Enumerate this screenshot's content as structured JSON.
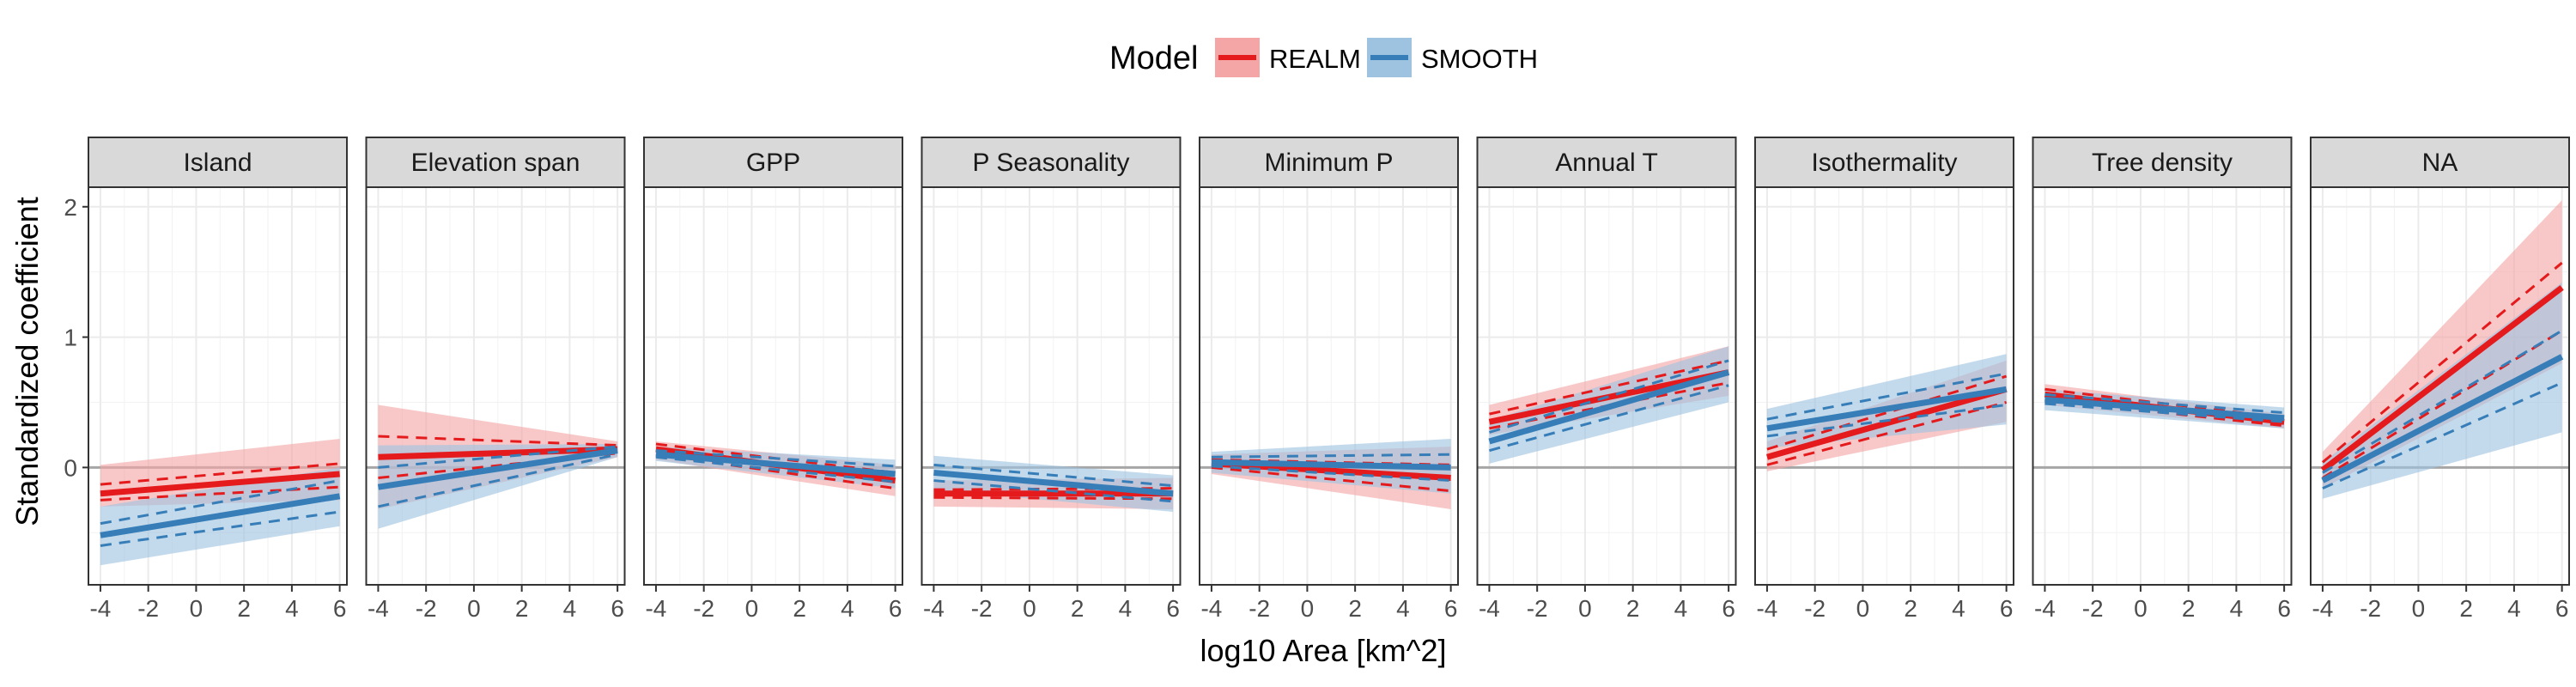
{
  "legend": {
    "title": "Model",
    "items": [
      {
        "label": "REALM",
        "color": "#E41A1C"
      },
      {
        "label": "SMOOTH",
        "color": "#377EB8"
      }
    ]
  },
  "axes": {
    "xlabel": "log10 Area [km^2]",
    "ylabel": "Standardized coefficient"
  },
  "chart_data": {
    "type": "line",
    "facet_by": "predictor",
    "x_range": [
      -4.5,
      6.3
    ],
    "y_range": [
      -0.9,
      2.15
    ],
    "x_ticks": [
      -4,
      -2,
      0,
      2,
      4,
      6
    ],
    "x_tick_labels": [
      "-4",
      "-2",
      "0",
      "2",
      "4",
      "6"
    ],
    "y_ticks": [
      0,
      1,
      2
    ],
    "y_tick_labels": [
      "0",
      "1",
      "2"
    ],
    "grid": true,
    "legend_position": "top",
    "reference_line_y": 0,
    "series_names": [
      "REALM",
      "SMOOTH"
    ],
    "series_colors": [
      "#E41A1C",
      "#377EB8"
    ],
    "band_colors": [
      "#F4A6A6",
      "#9EC3E0"
    ],
    "panels": [
      {
        "title": "Island",
        "series": [
          {
            "name": "REALM",
            "x": [
              -4,
              6
            ],
            "y": [
              -0.2,
              -0.05
            ],
            "lo": [
              -0.3,
              -0.25
            ],
            "hi": [
              0.02,
              0.22
            ],
            "dash_lo": [
              -0.25,
              -0.15
            ],
            "dash_hi": [
              -0.13,
              0.03
            ]
          },
          {
            "name": "SMOOTH",
            "x": [
              -4,
              6
            ],
            "y": [
              -0.52,
              -0.22
            ],
            "lo": [
              -0.75,
              -0.45
            ],
            "hi": [
              -0.3,
              0.0
            ],
            "dash_lo": [
              -0.6,
              -0.34
            ],
            "dash_hi": [
              -0.43,
              -0.1
            ]
          }
        ]
      },
      {
        "title": "Elevation span",
        "series": [
          {
            "name": "REALM",
            "x": [
              -4,
              6
            ],
            "y": [
              0.08,
              0.14
            ],
            "lo": [
              -0.32,
              0.08
            ],
            "hi": [
              0.48,
              0.2
            ],
            "dash_lo": [
              -0.08,
              0.11
            ],
            "dash_hi": [
              0.24,
              0.17
            ]
          },
          {
            "name": "SMOOTH",
            "x": [
              -4,
              6
            ],
            "y": [
              -0.15,
              0.13
            ],
            "lo": [
              -0.47,
              0.08
            ],
            "hi": [
              0.17,
              0.18
            ],
            "dash_lo": [
              -0.3,
              0.1
            ],
            "dash_hi": [
              0.0,
              0.16
            ]
          }
        ]
      },
      {
        "title": "GPP",
        "series": [
          {
            "name": "REALM",
            "x": [
              -4,
              6
            ],
            "y": [
              0.14,
              -0.1
            ],
            "lo": [
              0.06,
              -0.22
            ],
            "hi": [
              0.2,
              0.02
            ],
            "dash_lo": [
              0.1,
              -0.16
            ],
            "dash_hi": [
              0.18,
              -0.04
            ]
          },
          {
            "name": "SMOOTH",
            "x": [
              -4,
              6
            ],
            "y": [
              0.1,
              -0.05
            ],
            "lo": [
              0.05,
              -0.16
            ],
            "hi": [
              0.16,
              0.06
            ],
            "dash_lo": [
              0.08,
              -0.11
            ],
            "dash_hi": [
              0.13,
              0.01
            ]
          }
        ]
      },
      {
        "title": "P Seasonality",
        "series": [
          {
            "name": "REALM",
            "x": [
              -4,
              6
            ],
            "y": [
              -0.2,
              -0.2
            ],
            "lo": [
              -0.3,
              -0.32
            ],
            "hi": [
              -0.1,
              -0.08
            ],
            "dash_lo": [
              -0.23,
              -0.24
            ],
            "dash_hi": [
              -0.17,
              -0.16
            ]
          },
          {
            "name": "SMOOTH",
            "x": [
              -4,
              6
            ],
            "y": [
              -0.04,
              -0.2
            ],
            "lo": [
              -0.17,
              -0.34
            ],
            "hi": [
              0.09,
              -0.06
            ],
            "dash_lo": [
              -0.1,
              -0.26
            ],
            "dash_hi": [
              0.02,
              -0.14
            ]
          }
        ]
      },
      {
        "title": "Minimum P",
        "series": [
          {
            "name": "REALM",
            "x": [
              -4,
              6
            ],
            "y": [
              0.03,
              -0.08
            ],
            "lo": [
              -0.05,
              -0.32
            ],
            "hi": [
              0.1,
              0.16
            ],
            "dash_lo": [
              0.0,
              -0.18
            ],
            "dash_hi": [
              0.06,
              0.02
            ]
          },
          {
            "name": "SMOOTH",
            "x": [
              -4,
              6
            ],
            "y": [
              0.04,
              0.0
            ],
            "lo": [
              -0.04,
              -0.2
            ],
            "hi": [
              0.12,
              0.22
            ],
            "dash_lo": [
              0.01,
              -0.1
            ],
            "dash_hi": [
              0.08,
              0.1
            ]
          }
        ]
      },
      {
        "title": "Annual T",
        "series": [
          {
            "name": "REALM",
            "x": [
              -4,
              6
            ],
            "y": [
              0.35,
              0.73
            ],
            "lo": [
              0.25,
              0.55
            ],
            "hi": [
              0.48,
              0.93
            ],
            "dash_lo": [
              0.3,
              0.65
            ],
            "dash_hi": [
              0.41,
              0.82
            ]
          },
          {
            "name": "SMOOTH",
            "x": [
              -4,
              6
            ],
            "y": [
              0.2,
              0.73
            ],
            "lo": [
              0.03,
              0.5
            ],
            "hi": [
              0.36,
              0.93
            ],
            "dash_lo": [
              0.13,
              0.63
            ],
            "dash_hi": [
              0.27,
              0.82
            ]
          }
        ]
      },
      {
        "title": "Isothermality",
        "series": [
          {
            "name": "REALM",
            "x": [
              -4,
              6
            ],
            "y": [
              0.08,
              0.6
            ],
            "lo": [
              -0.03,
              0.35
            ],
            "hi": [
              0.2,
              0.82
            ],
            "dash_lo": [
              0.02,
              0.5
            ],
            "dash_hi": [
              0.14,
              0.7
            ]
          },
          {
            "name": "SMOOTH",
            "x": [
              -4,
              6
            ],
            "y": [
              0.3,
              0.6
            ],
            "lo": [
              0.15,
              0.33
            ],
            "hi": [
              0.45,
              0.87
            ],
            "dash_lo": [
              0.24,
              0.48
            ],
            "dash_hi": [
              0.37,
              0.72
            ]
          }
        ]
      },
      {
        "title": "Tree density",
        "series": [
          {
            "name": "REALM",
            "x": [
              -4,
              6
            ],
            "y": [
              0.56,
              0.35
            ],
            "lo": [
              0.48,
              0.3
            ],
            "hi": [
              0.64,
              0.41
            ],
            "dash_lo": [
              0.52,
              0.32
            ],
            "dash_hi": [
              0.6,
              0.38
            ]
          },
          {
            "name": "SMOOTH",
            "x": [
              -4,
              6
            ],
            "y": [
              0.52,
              0.38
            ],
            "lo": [
              0.44,
              0.3
            ],
            "hi": [
              0.6,
              0.46
            ],
            "dash_lo": [
              0.49,
              0.35
            ],
            "dash_hi": [
              0.56,
              0.42
            ]
          }
        ]
      },
      {
        "title": "NA",
        "series": [
          {
            "name": "REALM",
            "x": [
              -4,
              6
            ],
            "y": [
              -0.02,
              1.38
            ],
            "lo": [
              -0.16,
              0.8
            ],
            "hi": [
              0.12,
              2.05
            ],
            "dash_lo": [
              -0.08,
              1.05
            ],
            "dash_hi": [
              0.04,
              1.57
            ]
          },
          {
            "name": "SMOOTH",
            "x": [
              -4,
              6
            ],
            "y": [
              -0.1,
              0.85
            ],
            "lo": [
              -0.24,
              0.27
            ],
            "hi": [
              0.04,
              1.42
            ],
            "dash_lo": [
              -0.16,
              0.65
            ],
            "dash_hi": [
              -0.04,
              1.05
            ]
          }
        ]
      }
    ]
  }
}
